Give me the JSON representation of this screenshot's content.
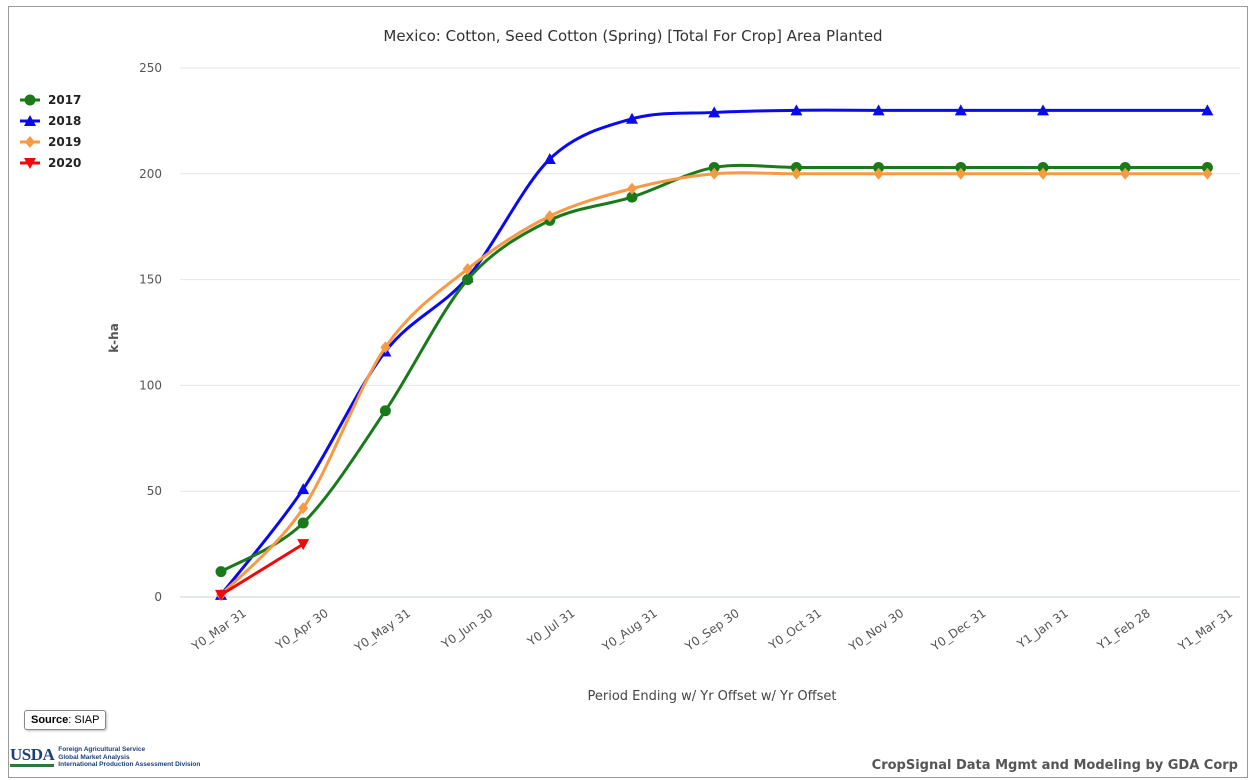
{
  "chart_data": {
    "type": "line",
    "title": "Mexico: Cotton, Seed Cotton (Spring) [Total For Crop] Area Planted",
    "xlabel": "Period Ending w/ Yr Offset w/ Yr Offset",
    "ylabel": "k-ha",
    "ylim": [
      0,
      250
    ],
    "yticks": [
      "0",
      "50",
      "100",
      "150",
      "200",
      "250"
    ],
    "grid": true,
    "legend_position": "top-left",
    "categories": [
      "Y0_Mar 31",
      "Y0_Apr 30",
      "Y0_May 31",
      "Y0_Jun 30",
      "Y0_Jul 31",
      "Y0_Aug 31",
      "Y0_Sep 30",
      "Y0_Oct 31",
      "Y0_Nov 30",
      "Y0_Dec 31",
      "Y1_Jan 31",
      "Y1_Feb 28",
      "Y1_Mar 31"
    ],
    "series": [
      {
        "name": "2017",
        "color": "#1a7a1a",
        "marker": "circle",
        "values": [
          12,
          35,
          88,
          150,
          178,
          189,
          203,
          203,
          203,
          203,
          203,
          203,
          203
        ]
      },
      {
        "name": "2018",
        "color": "#0a0af0",
        "marker": "triangle-up",
        "values": [
          1,
          51,
          116,
          151,
          207,
          226,
          229,
          230,
          230,
          230,
          230,
          null,
          230
        ]
      },
      {
        "name": "2019",
        "color": "#f79a46",
        "marker": "diamond",
        "values": [
          1,
          42,
          118,
          155,
          180,
          193,
          200,
          200,
          200,
          200,
          200,
          200,
          200
        ]
      },
      {
        "name": "2020",
        "color": "#ee0a0a",
        "marker": "triangle-down",
        "values": [
          1,
          25,
          null,
          null,
          null,
          null,
          null,
          null,
          null,
          null,
          null,
          null,
          null
        ]
      }
    ]
  },
  "footer": {
    "source_label": "Source",
    "source_value": ": SIAP",
    "usda_logo": "USDA",
    "usda_lines": [
      "Foreign Agricultural Service",
      "Global Market Analysis",
      "International Production Assessment Division"
    ],
    "credit": "CropSignal Data Mgmt and Modeling by GDA Corp"
  }
}
